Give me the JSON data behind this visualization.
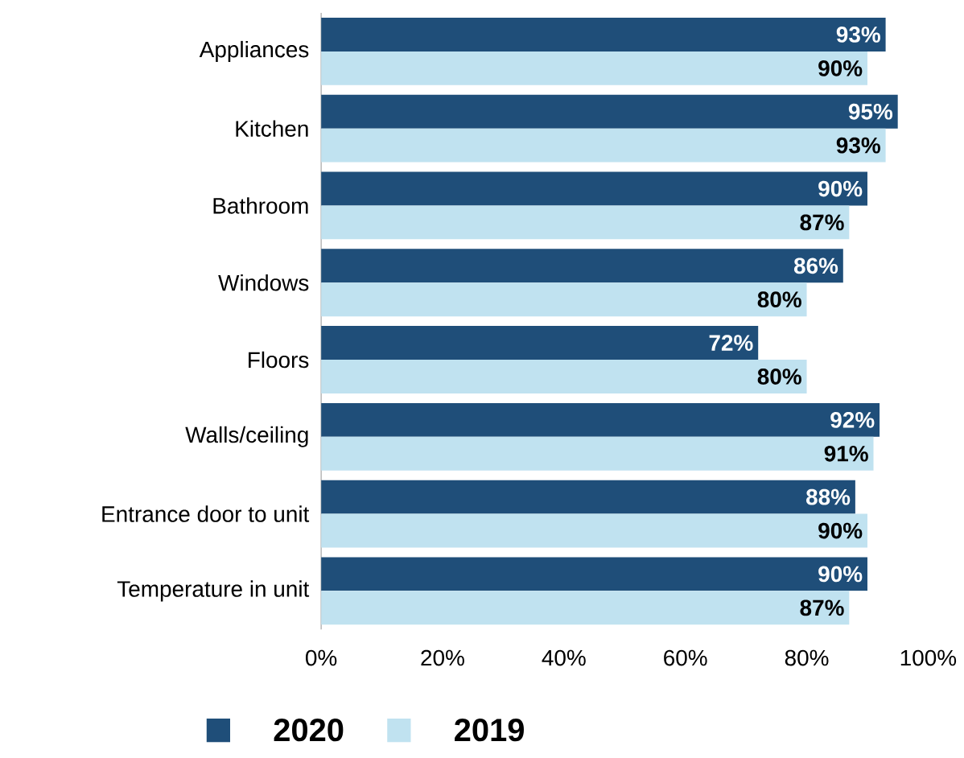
{
  "chart_data": {
    "type": "bar",
    "orientation": "horizontal",
    "categories": [
      "Appliances",
      "Kitchen",
      "Bathroom",
      "Windows",
      "Floors",
      "Walls/ceiling",
      "Entrance door to unit",
      "Temperature in unit"
    ],
    "series": [
      {
        "name": "2020",
        "color": "#1f4e79",
        "values": [
          93,
          95,
          90,
          86,
          72,
          92,
          88,
          90
        ],
        "value_labels": [
          "93%",
          "95%",
          "90%",
          "86%",
          "72%",
          "92%",
          "88%",
          "90%"
        ]
      },
      {
        "name": "2019",
        "color": "#c0e2f0",
        "values": [
          90,
          93,
          87,
          80,
          80,
          91,
          90,
          87
        ],
        "value_labels": [
          "90%",
          "93%",
          "87%",
          "80%",
          "80%",
          "91%",
          "90%",
          "87%"
        ]
      }
    ],
    "xlim": [
      0,
      100
    ],
    "xticks": [
      {
        "value": 0,
        "label": "0%"
      },
      {
        "value": 20,
        "label": "20%"
      },
      {
        "value": 40,
        "label": "40%"
      },
      {
        "value": 60,
        "label": "60%"
      },
      {
        "value": 80,
        "label": "80%"
      },
      {
        "value": 100,
        "label": "100%"
      }
    ],
    "grid": false,
    "legend": "bottom left"
  }
}
